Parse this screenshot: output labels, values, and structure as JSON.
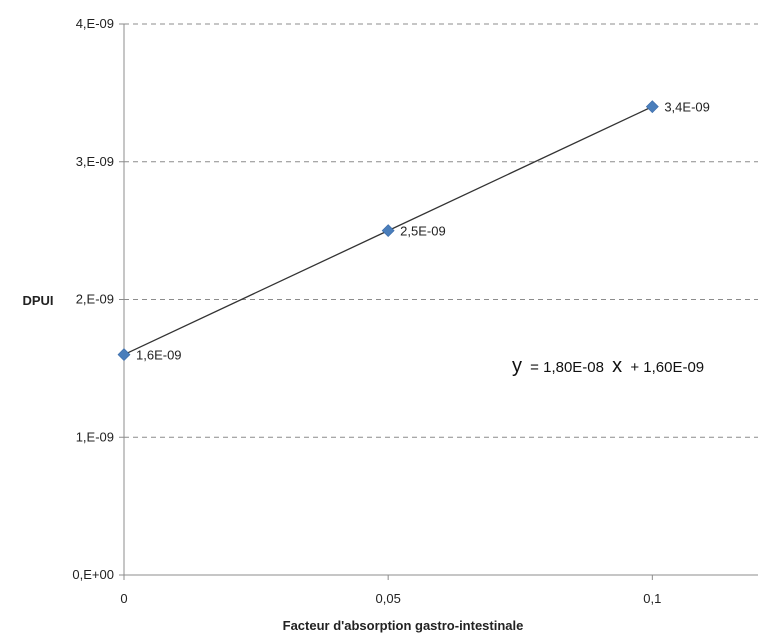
{
  "chart_data": {
    "type": "scatter",
    "title": "",
    "xlabel": "Facteur d'absorption gastro-intestinale",
    "ylabel": "DPUI",
    "xlim": [
      0,
      0.12
    ],
    "ylim": [
      0,
      4e-09
    ],
    "x_ticks": [
      0,
      0.05,
      0.1
    ],
    "x_tick_labels": [
      "0",
      "0,05",
      "0,1"
    ],
    "y_ticks": [
      0,
      1e-09,
      2e-09,
      3e-09,
      4e-09
    ],
    "y_tick_labels": [
      "0,E+00",
      "1,E-09",
      "2,E-09",
      "3,E-09",
      "4,E-09"
    ],
    "grid": "horizontal-dashed",
    "series": [
      {
        "x": [
          0,
          0.05,
          0.1
        ],
        "y": [
          1.6e-09,
          2.5e-09,
          3.4e-09
        ],
        "labels": [
          "1,6E-09",
          "2,5E-09",
          "3,4E-09"
        ],
        "color": "#4a7ebb",
        "marker": "diamond"
      }
    ],
    "trendline": {
      "type": "linear",
      "slope": 1.8e-08,
      "intercept": 1.6e-09,
      "x_range": [
        0,
        0.1
      ],
      "equation": {
        "y_symbol": "y",
        "equals": "= 1,80E-08",
        "x_symbol": "x",
        "rest": "+ 1,60E-09"
      }
    }
  }
}
